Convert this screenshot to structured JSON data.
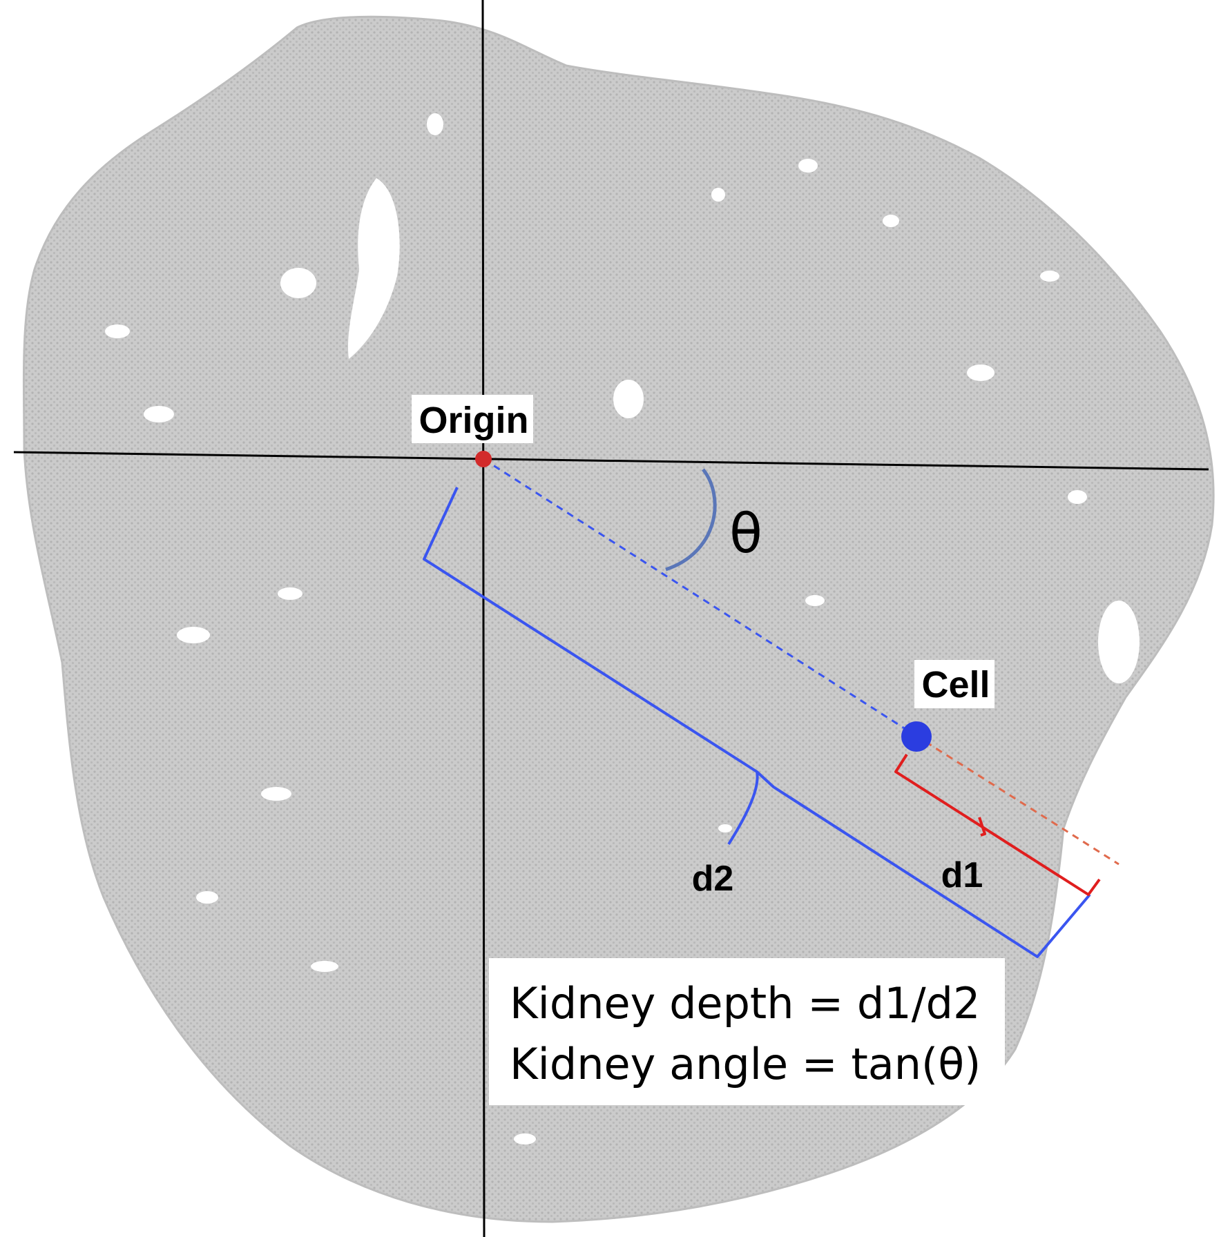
{
  "labels": {
    "origin": "Origin",
    "cell": "Cell",
    "theta": "θ",
    "d1": "d1",
    "d2": "d2"
  },
  "formulas": {
    "depth": "Kidney depth = d1/d2",
    "angle": "Kidney angle = tan(θ)"
  },
  "colors": {
    "tissue": "#c9c9c9",
    "tissue_dots": "#aeaeae",
    "axes": "#000000",
    "origin_point": "#d22b2b",
    "cell_point": "#2b3de0",
    "d2_bracket": "#3a55f0",
    "d1_bracket": "#e01e1e",
    "theta_arc": "#5a76b8"
  }
}
